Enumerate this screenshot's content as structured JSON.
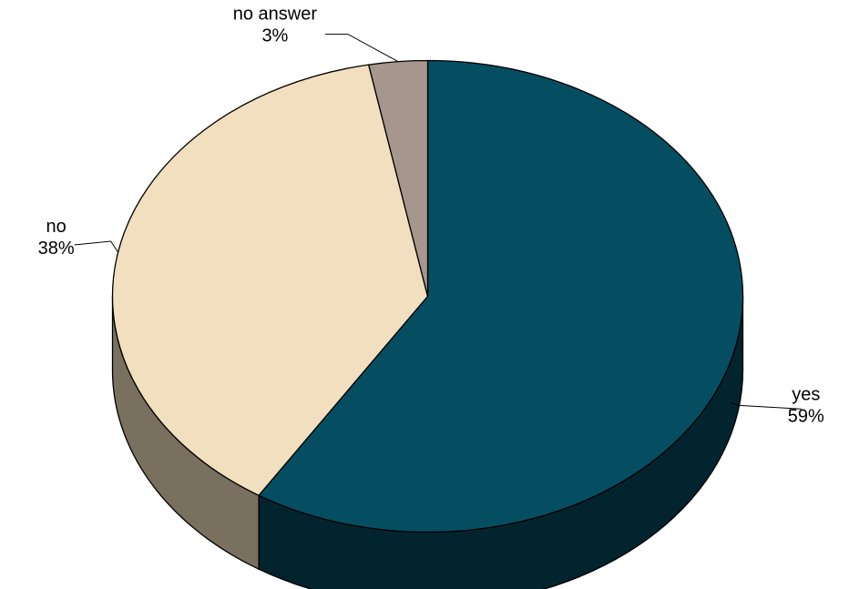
{
  "chart_data": {
    "type": "pie",
    "title": "",
    "three_d": true,
    "start_angle_deg": 0,
    "direction": "clockwise",
    "slices": [
      {
        "label": "yes",
        "value": 59,
        "value_label": "59%",
        "color": "#054E62",
        "side_color": "#02242E"
      },
      {
        "label": "no",
        "value": 38,
        "value_label": "38%",
        "color": "#F1DFBF",
        "side_color": "#7A705F"
      },
      {
        "label": "no answer",
        "value": 3,
        "value_label": "3%",
        "color": "#A6968E",
        "side_color": "#5A504A"
      }
    ],
    "legend": "none",
    "data_labels": "outside-with-leader-lines"
  }
}
